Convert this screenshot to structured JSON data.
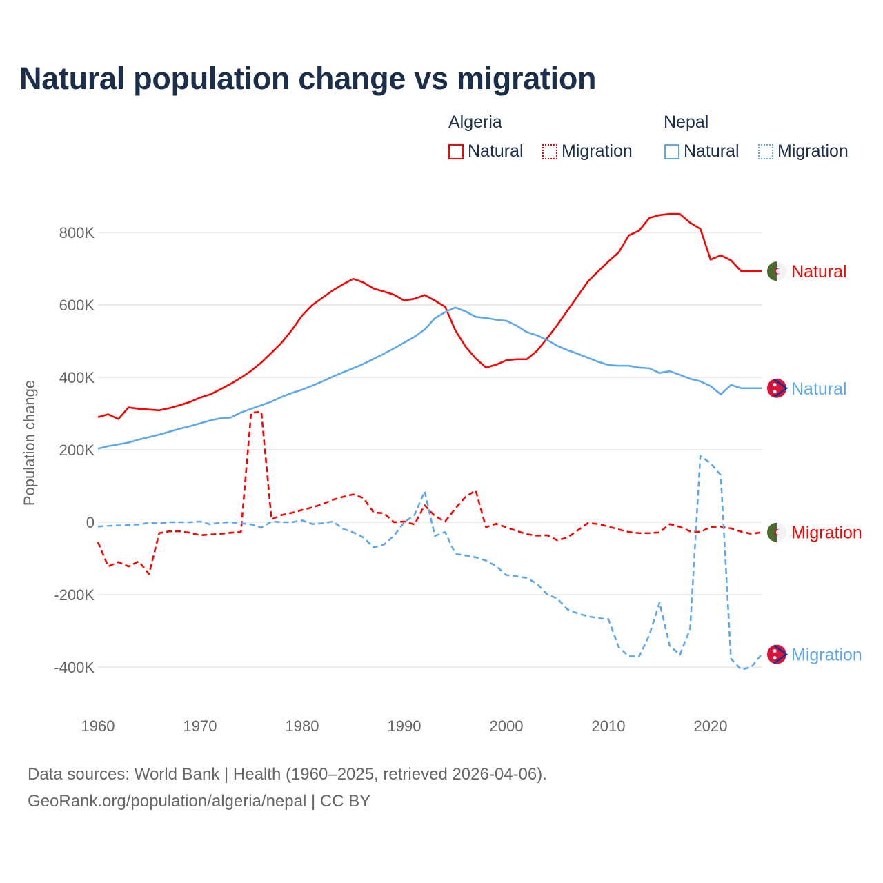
{
  "chart_data": {
    "type": "line",
    "title": "Natural population change vs migration",
    "ylabel": "Population change",
    "xlabel": "",
    "ylim": [
      -500,
      900
    ],
    "xlim": [
      1960,
      2025
    ],
    "y_unit": "thousands",
    "yticks": [
      -400,
      -200,
      0,
      200,
      400,
      600,
      800
    ],
    "ytick_labels": [
      "-400K",
      "-200K",
      "0",
      "200K",
      "400K",
      "600K",
      "800K"
    ],
    "xticks": [
      1960,
      1970,
      1980,
      1990,
      2000,
      2010,
      2020
    ],
    "xtick_labels": [
      "1960",
      "1970",
      "1980",
      "1990",
      "2000",
      "2010",
      "2020"
    ],
    "grid": true,
    "legend_placement": "top-right",
    "legend_groups": [
      "Algeria",
      "Nepal"
    ],
    "x": [
      1960,
      1961,
      1962,
      1963,
      1964,
      1965,
      1966,
      1967,
      1968,
      1969,
      1970,
      1971,
      1972,
      1973,
      1974,
      1975,
      1976,
      1977,
      1978,
      1979,
      1980,
      1981,
      1982,
      1983,
      1984,
      1985,
      1986,
      1987,
      1988,
      1989,
      1990,
      1991,
      1992,
      1993,
      1994,
      1995,
      1996,
      1997,
      1998,
      1999,
      2000,
      2001,
      2002,
      2003,
      2004,
      2005,
      2006,
      2007,
      2008,
      2009,
      2010,
      2011,
      2012,
      2013,
      2014,
      2015,
      2016,
      2017,
      2018,
      2019,
      2020,
      2021,
      2022,
      2023,
      2024,
      2025
    ],
    "series": [
      {
        "name": "Natural",
        "country": "Algeria",
        "color": "#ff0000",
        "style": "solid",
        "end_label": "Natural",
        "flag": "algeria-flag",
        "values": [
          290,
          298,
          285,
          317,
          313,
          311,
          309,
          315,
          323,
          332,
          344,
          353,
          367,
          382,
          399,
          418,
          441,
          468,
          496,
          531,
          571,
          600,
          620,
          640,
          657,
          672,
          662,
          645,
          637,
          628,
          612,
          617,
          627,
          612,
          595,
          530,
          485,
          452,
          427,
          435,
          447,
          450,
          450,
          473,
          508,
          545,
          585,
          625,
          665,
          693,
          720,
          745,
          792,
          805,
          840,
          848,
          851,
          851,
          827,
          810,
          725,
          737,
          723,
          693,
          693,
          693
        ]
      },
      {
        "name": "Migration",
        "country": "Algeria",
        "color": "#ff0000",
        "style": "dashed",
        "end_label": "Migration",
        "flag": "algeria-flag",
        "values": [
          -55,
          -122,
          -110,
          -122,
          -108,
          -143,
          -30,
          -25,
          -25,
          -29,
          -36,
          -34,
          -32,
          -29,
          -27,
          302,
          305,
          8,
          20,
          26,
          34,
          41,
          50,
          62,
          70,
          77,
          67,
          27,
          25,
          0,
          2,
          -6,
          47,
          17,
          2,
          38,
          70,
          88,
          -14,
          -4,
          -14,
          -24,
          -33,
          -37,
          -36,
          -50,
          -42,
          -22,
          -2,
          -5,
          -12,
          -20,
          -27,
          -30,
          -30,
          -28,
          -5,
          -13,
          -25,
          -27,
          -13,
          -12,
          -17,
          -26,
          -32,
          -28
        ]
      },
      {
        "name": "Natural",
        "country": "Nepal",
        "color": "#5ea8ec",
        "style": "solid",
        "end_label": "Natural",
        "flag": "nepal-flag",
        "values": [
          203,
          210,
          215,
          220,
          228,
          235,
          242,
          250,
          258,
          265,
          273,
          281,
          287,
          289,
          303,
          313,
          323,
          333,
          346,
          357,
          366,
          377,
          389,
          402,
          414,
          425,
          437,
          451,
          465,
          480,
          496,
          512,
          532,
          563,
          580,
          593,
          582,
          567,
          564,
          559,
          556,
          543,
          525,
          516,
          503,
          487,
          475,
          465,
          454,
          443,
          434,
          432,
          432,
          427,
          425,
          412,
          417,
          407,
          396,
          389,
          376,
          353,
          379,
          370,
          370,
          370
        ]
      },
      {
        "name": "Migration",
        "country": "Nepal",
        "color": "#5ea8ec",
        "style": "dashed",
        "end_label": "Migration",
        "flag": "nepal-flag",
        "values": [
          -12,
          -10,
          -9,
          -8,
          -6,
          -2,
          -3,
          0,
          0,
          0,
          2,
          -6,
          -1,
          0,
          -3,
          -6,
          -15,
          2,
          0,
          0,
          5,
          -5,
          -3,
          2,
          -18,
          -28,
          -42,
          -70,
          -62,
          -37,
          0,
          20,
          85,
          -38,
          -27,
          -87,
          -92,
          -97,
          -106,
          -121,
          -146,
          -149,
          -154,
          -170,
          -199,
          -211,
          -241,
          -252,
          -260,
          -265,
          -268,
          -345,
          -370,
          -371,
          -312,
          -222,
          -341,
          -366,
          -294,
          183,
          163,
          130,
          -377,
          -407,
          -400,
          -365
        ]
      }
    ]
  },
  "legend": {
    "algeria": {
      "title": "Algeria",
      "natural": "Natural",
      "migration": "Migration",
      "color": "#ff0000"
    },
    "nepal": {
      "title": "Nepal",
      "natural": "Natural",
      "migration": "Migration",
      "color": "#5ea8ec"
    }
  },
  "footer": {
    "line1": "Data sources: World Bank | Health (1960–2025, retrieved 2026-04-06).",
    "line2": "GeoRank.org/population/algeria/nepal | CC BY"
  }
}
